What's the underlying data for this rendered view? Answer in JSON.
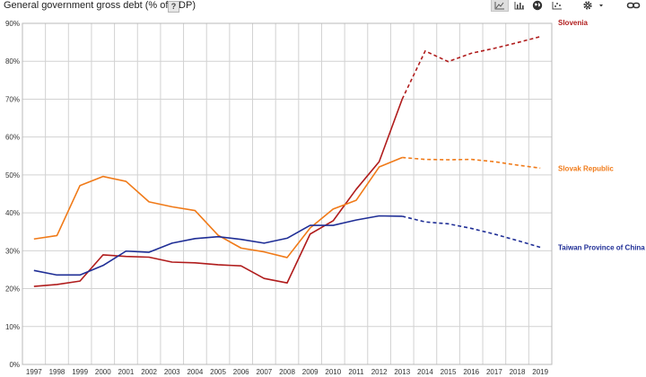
{
  "header": {
    "title": "General government gross debt (% of GDP)",
    "help_label": "?"
  },
  "toolbar": {
    "icons": [
      "line-chart-icon",
      "bar-chart-icon",
      "map-icon",
      "scatter-icon",
      "gear-icon",
      "link-icon"
    ],
    "active": "line-chart-icon"
  },
  "chart_data": {
    "type": "line",
    "title": "General government gross debt (% of GDP)",
    "x": [
      1997,
      1998,
      1999,
      2000,
      2001,
      2002,
      2003,
      2004,
      2005,
      2006,
      2007,
      2008,
      2009,
      2010,
      2011,
      2012,
      2013,
      2014,
      2015,
      2016,
      2017,
      2018,
      2019
    ],
    "x_tick_labels": [
      "1997",
      "1998",
      "1999",
      "2000",
      "2001",
      "2002",
      "2003",
      "2004",
      "2005",
      "2006",
      "2007",
      "2008",
      "2009",
      "2010",
      "2011",
      "2012",
      "2013",
      "2014",
      "2015",
      "2016",
      "2017",
      "2018",
      "2019"
    ],
    "ylim": [
      0,
      90
    ],
    "y_ticks": [
      0,
      10,
      20,
      30,
      40,
      50,
      60,
      70,
      80,
      90
    ],
    "y_tick_labels": [
      "0%",
      "10%",
      "20%",
      "30%",
      "40%",
      "50%",
      "60%",
      "70%",
      "80%",
      "90%"
    ],
    "grid": true,
    "legend": "end-of-line labels (right)",
    "forecast_from": 2013,
    "series": [
      {
        "name": "Slovenia",
        "color": "#b01c1c",
        "values": [
          20.6,
          21.1,
          22.0,
          28.9,
          28.5,
          28.3,
          27.0,
          26.8,
          26.3,
          26.0,
          22.7,
          21.5,
          34.4,
          37.9,
          46.2,
          53.5,
          70.0,
          82.7,
          79.9,
          82.1,
          83.4,
          84.9,
          86.5
        ]
      },
      {
        "name": "Slovak Republic",
        "color": "#f07a18",
        "values": [
          33.1,
          34.0,
          47.2,
          49.6,
          48.3,
          42.9,
          41.6,
          40.6,
          34.1,
          30.7,
          29.7,
          28.2,
          36.0,
          41.0,
          43.3,
          52.1,
          54.6,
          54.1,
          54.0,
          54.1,
          53.5,
          52.6,
          51.8
        ]
      },
      {
        "name": "Taiwan Province of China",
        "color": "#1f2e96",
        "values": [
          24.8,
          23.6,
          23.6,
          26.1,
          29.9,
          29.6,
          32.0,
          33.2,
          33.7,
          33.0,
          32.0,
          33.3,
          36.7,
          36.7,
          38.1,
          39.2,
          39.1,
          37.6,
          37.1,
          35.9,
          34.4,
          32.7,
          30.9
        ]
      }
    ]
  }
}
